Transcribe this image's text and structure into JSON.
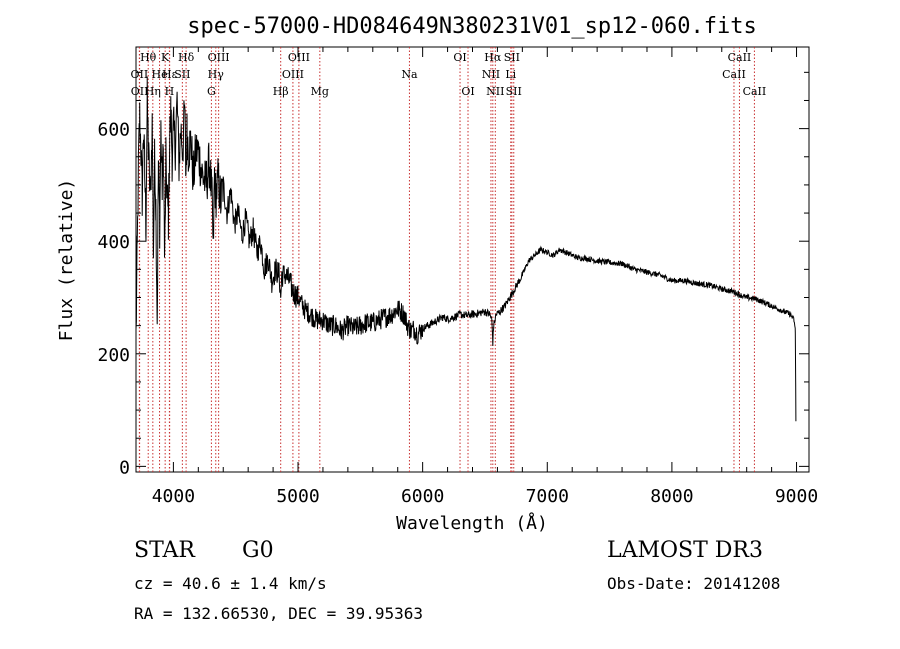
{
  "chart_data": {
    "type": "line",
    "title": "spec-57000-HD084649N380231V01_sp12-060.fits",
    "xlabel": "Wavelength (Å)",
    "ylabel": "Flux (relative)",
    "xlim": [
      3700,
      9100
    ],
    "ylim": [
      -10,
      745
    ],
    "xticks": [
      4000,
      5000,
      6000,
      7000,
      8000,
      9000
    ],
    "yticks": [
      0,
      200,
      400,
      600
    ],
    "grid": false,
    "series": [
      {
        "name": "flux",
        "x": [
          3700,
          3710,
          3720,
          3730,
          3740,
          3750,
          3760,
          3770,
          3780,
          3790,
          3800,
          3815,
          3830,
          3840,
          3850,
          3860,
          3870,
          3880,
          3890,
          3900,
          3910,
          3920,
          3930,
          3940,
          3950,
          3960,
          3970,
          3980,
          3990,
          4000,
          4015,
          4030,
          4045,
          4060,
          4075,
          4090,
          4100,
          4110,
          4120,
          4140,
          4160,
          4180,
          4200,
          4230,
          4260,
          4290,
          4310,
          4320,
          4330,
          4340,
          4360,
          4380,
          4400,
          4430,
          4460,
          4490,
          4520,
          4550,
          4580,
          4610,
          4640,
          4670,
          4700,
          4730,
          4760,
          4790,
          4820,
          4850,
          4861,
          4870,
          4900,
          4930,
          4960,
          5000,
          5050,
          5100,
          5150,
          5200,
          5250,
          5300,
          5350,
          5400,
          5450,
          5500,
          5550,
          5600,
          5650,
          5700,
          5750,
          5800,
          5850,
          5880,
          5895,
          5910,
          5930,
          5960,
          6000,
          6040,
          6080,
          6120,
          6160,
          6200,
          6250,
          6300,
          6350,
          6400,
          6450,
          6500,
          6540,
          6555,
          6563,
          6570,
          6590,
          6620,
          6660,
          6700,
          6750,
          6800,
          6850,
          6900,
          6950,
          7000,
          7050,
          7100,
          7150,
          7200,
          7250,
          7300,
          7400,
          7500,
          7600,
          7700,
          7800,
          7900,
          8000,
          8100,
          8200,
          8300,
          8400,
          8498,
          8542,
          8600,
          8662,
          8700,
          8750,
          8800,
          8850,
          8900,
          8950,
          8980,
          8990,
          8995
        ],
        "y": [
          230,
          380,
          540,
          620,
          560,
          480,
          600,
          520,
          430,
          650,
          560,
          470,
          610,
          380,
          560,
          460,
          260,
          540,
          430,
          600,
          500,
          560,
          360,
          540,
          480,
          440,
          580,
          630,
          550,
          600,
          570,
          650,
          540,
          600,
          560,
          640,
          520,
          600,
          560,
          580,
          510,
          560,
          560,
          520,
          500,
          540,
          470,
          380,
          520,
          480,
          510,
          470,
          500,
          450,
          490,
          430,
          450,
          410,
          440,
          400,
          420,
          380,
          400,
          350,
          370,
          330,
          350,
          340,
          300,
          340,
          340,
          330,
          310,
          300,
          280,
          270,
          260,
          260,
          250,
          250,
          240,
          250,
          245,
          250,
          255,
          255,
          260,
          265,
          270,
          280,
          270,
          250,
          245,
          240,
          245,
          235,
          245,
          250,
          255,
          260,
          265,
          262,
          265,
          270,
          268,
          270,
          272,
          275,
          270,
          260,
          220,
          250,
          270,
          275,
          285,
          300,
          320,
          340,
          365,
          375,
          385,
          380,
          375,
          385,
          380,
          375,
          370,
          370,
          365,
          362,
          360,
          350,
          345,
          340,
          330,
          330,
          325,
          322,
          315,
          310,
          305,
          300,
          298,
          295,
          290,
          285,
          280,
          275,
          270,
          260,
          240,
          80
        ]
      }
    ],
    "lines": [
      {
        "name": "OII",
        "x": 3727,
        "row": 2
      },
      {
        "name": "OII",
        "x": 3729,
        "row": 3
      },
      {
        "name": "Hθ",
        "x": 3798,
        "row": 1
      },
      {
        "name": "Hη",
        "x": 3835,
        "row": 3
      },
      {
        "name": "He",
        "x": 3889,
        "row": 2
      },
      {
        "name": "K",
        "x": 3934,
        "row": 1
      },
      {
        "name": "H",
        "x": 3968,
        "row": 3
      },
      {
        "name": "Hε",
        "x": 3970,
        "row": 2
      },
      {
        "name": "SII",
        "x": 4072,
        "row": 2
      },
      {
        "name": "Hδ",
        "x": 4102,
        "row": 1
      },
      {
        "name": "G",
        "x": 4305,
        "row": 3
      },
      {
        "name": "Hγ",
        "x": 4340,
        "row": 2
      },
      {
        "name": "OIII",
        "x": 4363,
        "row": 1
      },
      {
        "name": "Hβ",
        "x": 4861,
        "row": 3
      },
      {
        "name": "OIII",
        "x": 4959,
        "row": 2
      },
      {
        "name": "OIII",
        "x": 5007,
        "row": 1
      },
      {
        "name": "Mg",
        "x": 5175,
        "row": 3
      },
      {
        "name": "Na",
        "x": 5894,
        "row": 2
      },
      {
        "name": "OI",
        "x": 6300,
        "row": 1
      },
      {
        "name": "OI",
        "x": 6364,
        "row": 3
      },
      {
        "name": "NII",
        "x": 6548,
        "row": 2
      },
      {
        "name": "Hα",
        "x": 6563,
        "row": 1
      },
      {
        "name": "NII",
        "x": 6583,
        "row": 3
      },
      {
        "name": "Li",
        "x": 6707,
        "row": 2
      },
      {
        "name": "SII",
        "x": 6716,
        "row": 1
      },
      {
        "name": "SII",
        "x": 6731,
        "row": 3
      },
      {
        "name": "CaII",
        "x": 8498,
        "row": 2
      },
      {
        "name": "CaII",
        "x": 8542,
        "row": 1
      },
      {
        "name": "CaII",
        "x": 8662,
        "row": 3
      }
    ],
    "line_color": "#c83030"
  },
  "info": {
    "object_class": "STAR",
    "subclass": "G0",
    "survey": "LAMOST DR3",
    "cz": "cz = 40.6 ± 1.4 km/s",
    "obs_date": "Obs-Date: 20141208",
    "coords": "RA = 132.66530, DEC =  39.95363"
  }
}
